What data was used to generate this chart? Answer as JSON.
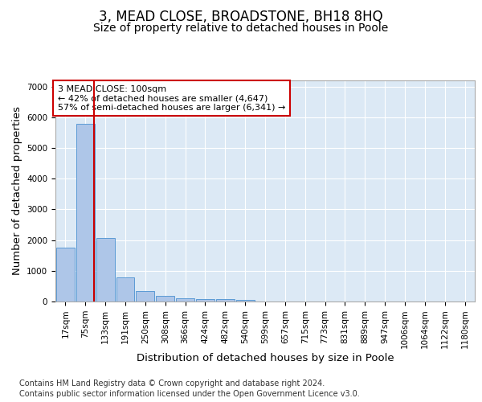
{
  "title": "3, MEAD CLOSE, BROADSTONE, BH18 8HQ",
  "subtitle": "Size of property relative to detached houses in Poole",
  "xlabel": "Distribution of detached houses by size in Poole",
  "ylabel": "Number of detached properties",
  "bar_labels": [
    "17sqm",
    "75sqm",
    "133sqm",
    "191sqm",
    "250sqm",
    "308sqm",
    "366sqm",
    "424sqm",
    "482sqm",
    "540sqm",
    "599sqm",
    "657sqm",
    "715sqm",
    "773sqm",
    "831sqm",
    "889sqm",
    "947sqm",
    "1006sqm",
    "1064sqm",
    "1122sqm",
    "1180sqm"
  ],
  "bar_heights": [
    1760,
    5790,
    2080,
    790,
    340,
    185,
    110,
    90,
    85,
    60,
    0,
    0,
    0,
    0,
    0,
    0,
    0,
    0,
    0,
    0,
    0
  ],
  "bar_color": "#aec6e8",
  "bar_edge_color": "#5b9bd5",
  "ylim": [
    0,
    7200
  ],
  "yticks": [
    0,
    1000,
    2000,
    3000,
    4000,
    5000,
    6000,
    7000
  ],
  "vline_color": "#cc0000",
  "annotation_text": "3 MEAD CLOSE: 100sqm\n← 42% of detached houses are smaller (4,647)\n57% of semi-detached houses are larger (6,341) →",
  "annotation_box_color": "#ffffff",
  "annotation_border_color": "#cc0000",
  "footer_line1": "Contains HM Land Registry data © Crown copyright and database right 2024.",
  "footer_line2": "Contains public sector information licensed under the Open Government Licence v3.0.",
  "plot_bg_color": "#dce9f5",
  "grid_color": "#ffffff",
  "title_fontsize": 12,
  "subtitle_fontsize": 10,
  "axis_label_fontsize": 9.5,
  "tick_fontsize": 7.5,
  "annotation_fontsize": 8,
  "footer_fontsize": 7
}
